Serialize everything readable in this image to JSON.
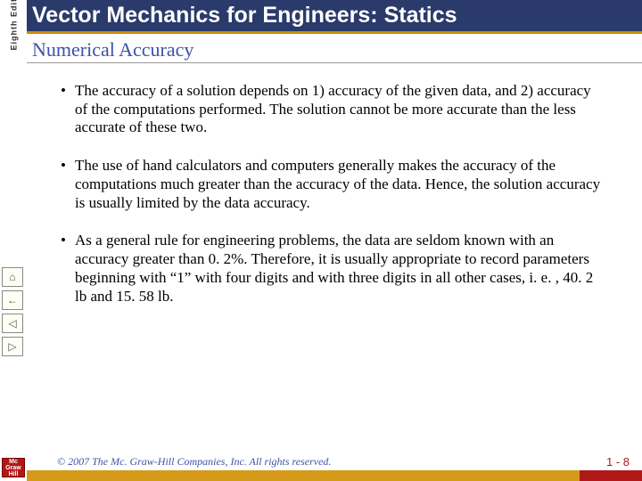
{
  "colors": {
    "title_bg": "#2a3a6b",
    "title_fg": "#ffffff",
    "title_underline": "#cc8a00",
    "subtitle_fg": "#3a52a8",
    "footer_gold": "#d59a1a",
    "footer_red": "#b01818",
    "copyright_fg": "#3a52a8",
    "pagenum_fg": "#b01818",
    "logo_bg": "#b01818",
    "logo_fg": "#ffffff"
  },
  "edition": "Eighth Edition",
  "title": "Vector Mechanics for Engineers: Statics",
  "subtitle": "Numerical Accuracy",
  "bullets": [
    "The accuracy of a solution depends on 1) accuracy of the given data, and 2) accuracy of the computations performed.  The solution cannot be more accurate than the less accurate of these two.",
    "The use of hand calculators and computers generally makes the accuracy of the computations much greater than the accuracy of the data.  Hence, the solution accuracy is usually limited by the data accuracy.",
    "As a general rule for engineering problems, the data are seldom known with an accuracy greater than 0. 2%.  Therefore, it is usually appropriate to record parameters beginning with “1” with four digits and with three digits in all other cases, i. e. ,  40. 2 lb and 15. 58 lb."
  ],
  "nav": {
    "home": "⌂",
    "back_skip": "←",
    "back": "◁",
    "fwd": "▷"
  },
  "copyright": "© 2007 The Mc. Graw-Hill Companies, Inc. All rights reserved.",
  "pagenum": "1 - 8",
  "logo": "Mc Graw Hill"
}
